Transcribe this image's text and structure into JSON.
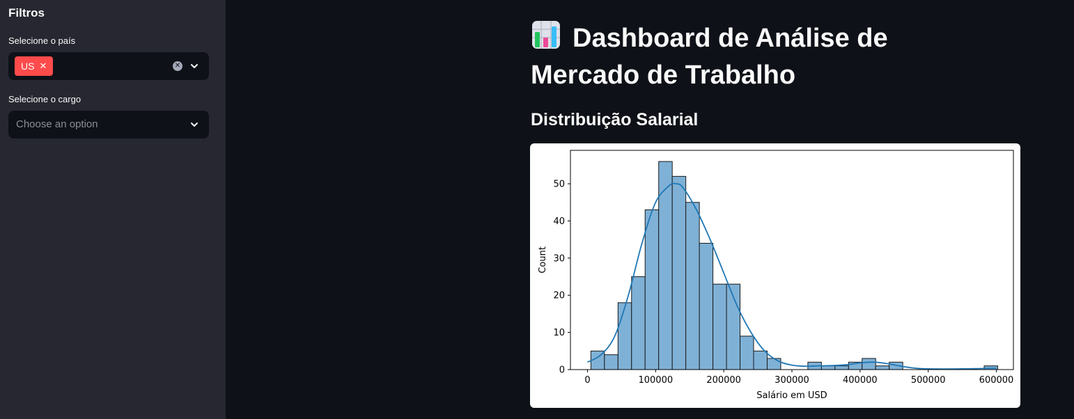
{
  "sidebar": {
    "title": "Filtros",
    "country_filter": {
      "label": "Selecione o país",
      "selected": [
        "US"
      ]
    },
    "role_filter": {
      "label": "Selecione o cargo",
      "placeholder": "Choose an option"
    }
  },
  "main": {
    "title": "Dashboard de Análise de Mercado de Trabalho",
    "title_icon": "bar-chart-emoji-icon",
    "section_title": "Distribuição Salarial"
  },
  "chart_data": {
    "type": "bar",
    "subtype": "histogram-with-kde",
    "xlabel": "Salário em USD",
    "ylabel": "Count",
    "xlim": [
      -25000,
      625000
    ],
    "ylim": [
      0,
      59
    ],
    "xticks": [
      0,
      100000,
      200000,
      300000,
      400000,
      500000,
      600000
    ],
    "yticks": [
      0,
      10,
      20,
      30,
      40,
      50
    ],
    "bar_color": "#7fb1d6",
    "line_color": "#1f77b4",
    "bins": [
      {
        "x0": 5000,
        "x1": 24900,
        "count": 5
      },
      {
        "x0": 24900,
        "x1": 44800,
        "count": 4
      },
      {
        "x0": 44800,
        "x1": 64700,
        "count": 18
      },
      {
        "x0": 64700,
        "x1": 84600,
        "count": 25
      },
      {
        "x0": 84600,
        "x1": 104500,
        "count": 43
      },
      {
        "x0": 104500,
        "x1": 124400,
        "count": 56
      },
      {
        "x0": 124400,
        "x1": 144300,
        "count": 52
      },
      {
        "x0": 144300,
        "x1": 164200,
        "count": 45
      },
      {
        "x0": 164200,
        "x1": 184100,
        "count": 34
      },
      {
        "x0": 184100,
        "x1": 204000,
        "count": 23
      },
      {
        "x0": 204000,
        "x1": 223900,
        "count": 23
      },
      {
        "x0": 223900,
        "x1": 243800,
        "count": 9
      },
      {
        "x0": 243800,
        "x1": 263700,
        "count": 5
      },
      {
        "x0": 263700,
        "x1": 283600,
        "count": 3
      },
      {
        "x0": 283600,
        "x1": 303500,
        "count": 0
      },
      {
        "x0": 303500,
        "x1": 323400,
        "count": 0
      },
      {
        "x0": 323400,
        "x1": 343300,
        "count": 2
      },
      {
        "x0": 343300,
        "x1": 363200,
        "count": 1
      },
      {
        "x0": 363200,
        "x1": 383100,
        "count": 1
      },
      {
        "x0": 383100,
        "x1": 403000,
        "count": 2
      },
      {
        "x0": 403000,
        "x1": 422900,
        "count": 3
      },
      {
        "x0": 422900,
        "x1": 442800,
        "count": 1
      },
      {
        "x0": 442800,
        "x1": 462700,
        "count": 2
      },
      {
        "x0": 462700,
        "x1": 482600,
        "count": 0
      },
      {
        "x0": 482600,
        "x1": 502500,
        "count": 0
      },
      {
        "x0": 502500,
        "x1": 522400,
        "count": 0
      },
      {
        "x0": 522400,
        "x1": 542300,
        "count": 0
      },
      {
        "x0": 542300,
        "x1": 562200,
        "count": 0
      },
      {
        "x0": 562200,
        "x1": 582100,
        "count": 0
      },
      {
        "x0": 582100,
        "x1": 602000,
        "count": 1
      }
    ],
    "kde": {
      "x": [
        0,
        20000,
        40000,
        60000,
        80000,
        100000,
        120000,
        130000,
        140000,
        160000,
        180000,
        200000,
        220000,
        240000,
        260000,
        280000,
        300000,
        320000,
        340000,
        360000,
        380000,
        400000,
        420000,
        440000,
        460000,
        480000,
        500000,
        550000,
        600000
      ],
      "y": [
        2,
        4,
        9,
        20,
        34,
        45,
        49.5,
        50,
        49,
        43,
        35,
        26,
        17,
        10,
        5,
        2.3,
        1.2,
        0.9,
        1.0,
        1.1,
        1.3,
        1.8,
        2.0,
        1.6,
        0.9,
        0.4,
        0.2,
        0.2,
        0.4
      ]
    }
  }
}
